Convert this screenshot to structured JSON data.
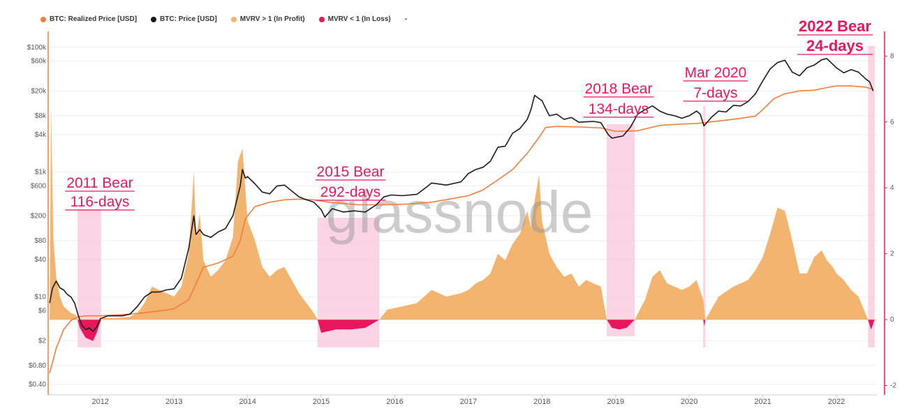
{
  "legend": [
    {
      "label": "BTC: Realized Price [USD]",
      "color": "#f07f3c"
    },
    {
      "label": "BTC: Price [USD]",
      "color": "#1a1a1a"
    },
    {
      "label": "MVRV > 1 (In Profit)",
      "color": "#f2b46e"
    },
    {
      "label": "MVRV < 1 (In Loss)",
      "color": "#e8175d"
    },
    {
      "label": "-",
      "color": ""
    }
  ],
  "watermark": "glassnode",
  "colors": {
    "realized": "#f07f3c",
    "price": "#1a1a1a",
    "profit": "#f2b46e",
    "loss": "#e8175d",
    "band": "#f9c6d9",
    "axis_right": "#e8175d"
  },
  "chart_data": {
    "type": "line",
    "x_ticks": [
      "2012",
      "2013",
      "2014",
      "2015",
      "2016",
      "2017",
      "2018",
      "2019",
      "2020",
      "2021",
      "2022"
    ],
    "y_left": {
      "scale": "log",
      "ticks": [
        "$100k",
        "$60k",
        "$20k",
        "$8k",
        "$4k",
        "$1k",
        "$600",
        "$200",
        "$80",
        "$40",
        "$10",
        "$6",
        "$2",
        "$0.80",
        "$0.40"
      ],
      "tick_values": [
        100000,
        60000,
        20000,
        8000,
        4000,
        1000,
        600,
        200,
        80,
        40,
        10,
        6,
        2,
        0.8,
        0.4
      ],
      "range": [
        0.3,
        150000
      ]
    },
    "y_right": {
      "ticks": [
        "8",
        "6",
        "4",
        "2",
        "0",
        "-2"
      ],
      "tick_values": [
        8,
        6,
        4,
        2,
        0,
        -2
      ],
      "range": [
        -2.2,
        8.6
      ]
    },
    "bear_bands": [
      {
        "label_line1": "2011 Bear",
        "label_line2": "116-days",
        "start": 2011.69,
        "end": 2012.01
      },
      {
        "label_line1": "2015 Bear",
        "label_line2": "292-days",
        "start": 2014.95,
        "end": 2015.79
      },
      {
        "label_line1": "2018 Bear",
        "label_line2": "134-days",
        "start": 2018.88,
        "end": 2019.26
      },
      {
        "label_line1": "Mar 2020",
        "label_line2": "7-days",
        "start": 2020.19,
        "end": 2020.22
      },
      {
        "label_line1": "2022 Bear",
        "label_line2": "24-days",
        "start": 2022.43,
        "end": 2022.52
      }
    ],
    "series": [
      {
        "name": "BTC: Price [USD]",
        "axis": "left",
        "x": [
          2011.31,
          2011.35,
          2011.4,
          2011.45,
          2011.5,
          2011.55,
          2011.6,
          2011.65,
          2011.7,
          2011.75,
          2011.8,
          2011.85,
          2011.9,
          2011.95,
          2012.0,
          2012.1,
          2012.2,
          2012.3,
          2012.4,
          2012.5,
          2012.6,
          2012.7,
          2012.8,
          2012.9,
          2013.0,
          2013.1,
          2013.2,
          2013.27,
          2013.3,
          2013.35,
          2013.4,
          2013.5,
          2013.6,
          2013.7,
          2013.8,
          2013.9,
          2013.93,
          2013.97,
          2014.0,
          2014.1,
          2014.2,
          2014.3,
          2014.4,
          2014.5,
          2014.6,
          2014.7,
          2014.8,
          2014.9,
          2015.0,
          2015.05,
          2015.15,
          2015.3,
          2015.45,
          2015.6,
          2015.75,
          2015.85,
          2015.95,
          2016.1,
          2016.3,
          2016.45,
          2016.5,
          2016.7,
          2016.9,
          2017.0,
          2017.1,
          2017.2,
          2017.3,
          2017.4,
          2017.5,
          2017.6,
          2017.7,
          2017.8,
          2017.85,
          2017.9,
          2017.96,
          2018.0,
          2018.05,
          2018.1,
          2018.2,
          2018.3,
          2018.4,
          2018.5,
          2018.6,
          2018.7,
          2018.8,
          2018.9,
          2018.95,
          2019.0,
          2019.1,
          2019.2,
          2019.3,
          2019.4,
          2019.5,
          2019.6,
          2019.7,
          2019.8,
          2019.9,
          2020.0,
          2020.1,
          2020.15,
          2020.2,
          2020.3,
          2020.4,
          2020.5,
          2020.6,
          2020.7,
          2020.8,
          2020.9,
          2021.0,
          2021.1,
          2021.2,
          2021.3,
          2021.4,
          2021.5,
          2021.6,
          2021.7,
          2021.8,
          2021.87,
          2022.0,
          2022.1,
          2022.2,
          2022.3,
          2022.4,
          2022.45,
          2022.5
        ],
        "y": [
          8,
          14,
          18,
          14,
          13,
          11,
          10,
          8,
          5,
          3.5,
          3,
          3.2,
          2.8,
          3.3,
          4.5,
          5,
          5,
          5,
          5.3,
          7,
          10,
          12,
          12,
          13,
          13.5,
          20,
          60,
          200,
          100,
          120,
          100,
          90,
          110,
          125,
          200,
          600,
          1100,
          800,
          850,
          650,
          480,
          450,
          600,
          620,
          500,
          400,
          360,
          330,
          250,
          190,
          260,
          230,
          240,
          230,
          300,
          400,
          430,
          420,
          440,
          600,
          670,
          620,
          700,
          950,
          1100,
          1200,
          1500,
          2500,
          2600,
          4200,
          5000,
          7000,
          10000,
          17000,
          15000,
          14000,
          10500,
          8000,
          8500,
          7000,
          7500,
          6300,
          6400,
          6500,
          6200,
          4000,
          3500,
          3600,
          3800,
          5200,
          8500,
          10000,
          11500,
          9500,
          8500,
          8000,
          7300,
          8000,
          9500,
          8500,
          5500,
          7500,
          9500,
          9200,
          11700,
          11500,
          13500,
          18000,
          29000,
          45000,
          57000,
          62000,
          40000,
          35000,
          47000,
          52000,
          63000,
          66000,
          47000,
          39000,
          44000,
          40000,
          31000,
          28000,
          20000
        ]
      },
      {
        "name": "BTC: Realized Price [USD]",
        "axis": "left",
        "x": [
          2011.31,
          2011.4,
          2011.5,
          2011.6,
          2011.7,
          2011.8,
          2012.0,
          2012.3,
          2012.6,
          2012.9,
          2013.0,
          2013.2,
          2013.4,
          2013.6,
          2013.8,
          2013.9,
          2013.97,
          2014.1,
          2014.3,
          2014.5,
          2014.7,
          2014.9,
          2015.1,
          2015.5,
          2015.9,
          2016.2,
          2016.5,
          2016.8,
          2017.0,
          2017.2,
          2017.4,
          2017.6,
          2017.8,
          2017.96,
          2018.05,
          2018.2,
          2018.5,
          2018.8,
          2019.0,
          2019.3,
          2019.6,
          2019.9,
          2020.1,
          2020.3,
          2020.6,
          2020.9,
          2021.0,
          2021.15,
          2021.3,
          2021.5,
          2021.7,
          2021.9,
          2022.0,
          2022.2,
          2022.4,
          2022.5
        ],
        "y": [
          0.6,
          1.5,
          3,
          4.2,
          4.8,
          5,
          5,
          5.2,
          5.6,
          6.2,
          6.5,
          9,
          30,
          35,
          45,
          80,
          180,
          280,
          330,
          360,
          370,
          360,
          330,
          300,
          300,
          310,
          330,
          380,
          420,
          520,
          750,
          1100,
          2000,
          3600,
          5200,
          5400,
          5300,
          5100,
          4500,
          4600,
          5600,
          5900,
          6000,
          6400,
          7000,
          7900,
          10000,
          15000,
          18000,
          20000,
          20500,
          23000,
          24000,
          24000,
          23000,
          21000
        ]
      },
      {
        "name": "MVRV > 1 (In Profit)",
        "axis": "right",
        "x": [
          2011.31,
          2011.33,
          2011.36,
          2011.4,
          2011.45,
          2011.5,
          2011.55,
          2011.6,
          2011.66,
          2011.69,
          2012.01,
          2012.05,
          2012.2,
          2012.4,
          2012.5,
          2012.6,
          2012.7,
          2012.8,
          2012.9,
          2013.0,
          2013.1,
          2013.2,
          2013.27,
          2013.3,
          2013.35,
          2013.4,
          2013.5,
          2013.6,
          2013.7,
          2013.8,
          2013.87,
          2013.93,
          2014.0,
          2014.1,
          2014.2,
          2014.3,
          2014.4,
          2014.5,
          2014.6,
          2014.7,
          2014.8,
          2014.9,
          2014.95,
          2015.79,
          2015.9,
          2016.1,
          2016.3,
          2016.5,
          2016.7,
          2016.9,
          2017.0,
          2017.1,
          2017.2,
          2017.3,
          2017.4,
          2017.5,
          2017.6,
          2017.7,
          2017.8,
          2017.85,
          2017.9,
          2017.96,
          2018.0,
          2018.1,
          2018.2,
          2018.3,
          2018.4,
          2018.5,
          2018.6,
          2018.7,
          2018.8,
          2018.88,
          2019.26,
          2019.4,
          2019.5,
          2019.6,
          2019.7,
          2019.8,
          2019.9,
          2020.0,
          2020.1,
          2020.19,
          2020.22,
          2020.4,
          2020.6,
          2020.8,
          2020.9,
          2021.0,
          2021.1,
          2021.15,
          2021.2,
          2021.3,
          2021.4,
          2021.5,
          2021.6,
          2021.7,
          2021.8,
          2021.87,
          2021.95,
          2022.0,
          2022.1,
          2022.2,
          2022.3,
          2022.43
        ],
        "y": [
          0,
          6.5,
          2.5,
          1.3,
          0.7,
          0.4,
          0.3,
          0.2,
          0.15,
          0,
          0,
          0.05,
          0.05,
          0.08,
          0.2,
          0.5,
          1.0,
          0.9,
          0.8,
          0.7,
          1.0,
          2.0,
          4.5,
          2.5,
          3.2,
          1.8,
          1.3,
          1.5,
          1.8,
          2.5,
          4.8,
          5.2,
          3.0,
          2.4,
          1.6,
          1.3,
          1.5,
          1.6,
          1.2,
          0.8,
          0.5,
          0.2,
          0,
          0,
          0.3,
          0.4,
          0.5,
          0.9,
          0.7,
          0.8,
          0.9,
          1.1,
          1.2,
          1.4,
          2.0,
          1.8,
          2.3,
          2.6,
          3.3,
          2.8,
          3.6,
          4.4,
          3.0,
          2.0,
          1.6,
          1.3,
          1.4,
          1.0,
          1.2,
          1.1,
          1.0,
          0,
          0,
          0.6,
          1.3,
          1.5,
          1.1,
          1.0,
          0.9,
          1.0,
          1.2,
          0.6,
          0,
          0.7,
          1.0,
          1.2,
          1.5,
          1.9,
          2.6,
          3.0,
          3.4,
          3.3,
          2.4,
          1.4,
          1.4,
          1.9,
          2.1,
          1.8,
          1.6,
          1.4,
          1.2,
          0.9,
          0.7,
          0
        ]
      },
      {
        "name": "MVRV < 1 (In Loss)",
        "axis": "right",
        "x": [
          2011.69,
          2011.72,
          2011.8,
          2011.85,
          2011.9,
          2011.95,
          2012.01,
          2014.95,
          2015.0,
          2015.1,
          2015.2,
          2015.4,
          2015.6,
          2015.79,
          2018.88,
          2018.95,
          2019.05,
          2019.15,
          2019.26,
          2020.19,
          2020.205,
          2020.22,
          2022.43,
          2022.47,
          2022.52
        ],
        "y": [
          0,
          -0.25,
          -0.55,
          -0.6,
          -0.65,
          -0.4,
          0,
          0,
          -0.4,
          -0.35,
          -0.3,
          -0.3,
          -0.25,
          0,
          0,
          -0.25,
          -0.3,
          -0.25,
          0,
          0,
          -0.2,
          0,
          0,
          -0.3,
          0
        ]
      }
    ]
  }
}
